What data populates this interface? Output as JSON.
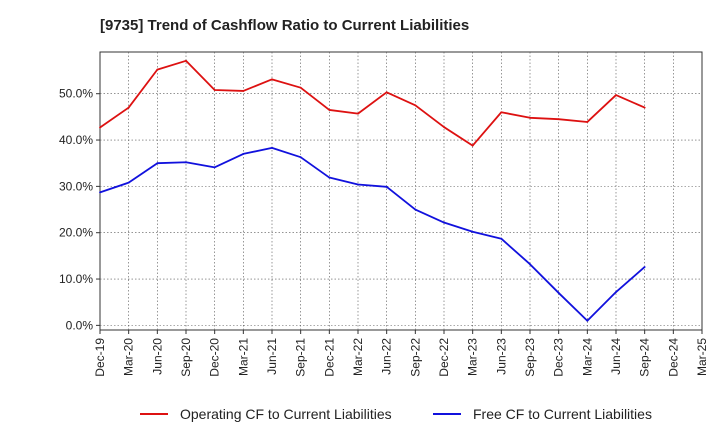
{
  "chart_data": {
    "type": "line",
    "title": "[9735]  Trend of Cashflow Ratio to Current Liabilities",
    "xlabel": "",
    "ylabel": "",
    "categories": [
      "Dec-19",
      "Mar-20",
      "Jun-20",
      "Sep-20",
      "Dec-20",
      "Mar-21",
      "Jun-21",
      "Sep-21",
      "Dec-21",
      "Mar-22",
      "Jun-22",
      "Sep-22",
      "Dec-22",
      "Mar-23",
      "Jun-23",
      "Sep-23",
      "Dec-23",
      "Mar-24",
      "Jun-24",
      "Sep-24",
      "Dec-24",
      "Mar-25"
    ],
    "x_tick_labels": [
      "Dec-19",
      "Mar-20",
      "Jun-20",
      "Sep-20",
      "Dec-20",
      "Mar-21",
      "Jun-21",
      "Sep-21",
      "Dec-21",
      "Mar-22",
      "Jun-22",
      "Sep-22",
      "Dec-22",
      "Mar-23",
      "Jun-23",
      "Sep-23",
      "Dec-23",
      "Mar-24",
      "Jun-24",
      "Sep-24",
      "Dec-24",
      "Mar-25"
    ],
    "y_tick_labels": [
      "0.0%",
      "10.0%",
      "20.0%",
      "30.0%",
      "40.0%",
      "50.0%"
    ],
    "y_ticks": [
      0,
      10,
      20,
      30,
      40,
      50
    ],
    "ylim": [
      -1,
      59
    ],
    "grid": true,
    "legend_position": "bottom",
    "series": [
      {
        "name": "Operating CF to Current Liabilities",
        "color": "#dd1111",
        "values": [
          42.7,
          47.0,
          55.2,
          57.1,
          50.8,
          50.6,
          53.1,
          51.3,
          46.5,
          45.7,
          50.3,
          47.5,
          42.8,
          38.8,
          46.0,
          44.8,
          44.5,
          43.9,
          49.7,
          47.0,
          null,
          null
        ]
      },
      {
        "name": "Free CF to Current Liabilities",
        "color": "#1111dd",
        "values": [
          28.7,
          30.8,
          35.0,
          35.2,
          34.1,
          37.0,
          38.3,
          36.3,
          31.9,
          30.4,
          29.9,
          25.0,
          22.2,
          20.2,
          18.7,
          13.2,
          7.0,
          1.0,
          7.2,
          12.6,
          null,
          null
        ]
      }
    ]
  }
}
